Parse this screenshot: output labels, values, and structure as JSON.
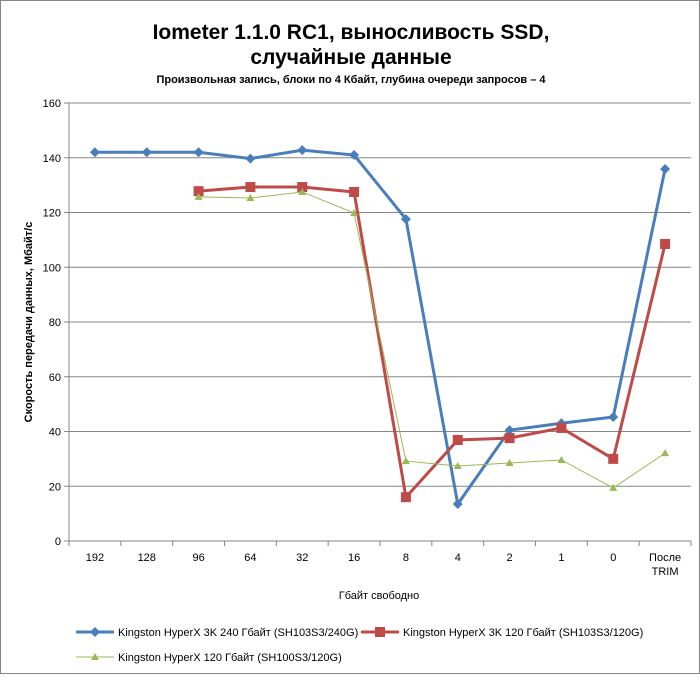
{
  "chart_data": {
    "type": "line",
    "title_line1": "Iometer 1.1.0 RC1, выносливость SSD,",
    "title_line2": "случайные данные",
    "subtitle": "Произвольная  запись, блоки по 4 Кбайт, глубина очереди запросов – 4",
    "xlabel": "Гбайт свободно",
    "ylabel": "Скорость  передачи данных, Мбайт/с",
    "ylim": [
      0,
      160
    ],
    "yticks": [
      0,
      20,
      40,
      60,
      80,
      100,
      120,
      140,
      160
    ],
    "grid": true,
    "legend_position": "bottom",
    "categories": [
      "192",
      "128",
      "96",
      "64",
      "32",
      "16",
      "8",
      "4",
      "2",
      "1",
      "0",
      "После TRIM"
    ],
    "series": [
      {
        "name": "Kingston HyperX  3K 240 Гбайт (SH103S3/240G)",
        "color": "#4a7ebb",
        "marker": "diamond",
        "values": [
          142,
          142,
          142,
          139.7,
          142.8,
          141,
          117.6,
          13.5,
          40.5,
          43,
          45.3,
          135.9
        ]
      },
      {
        "name": "Kingston HyperX  3K 120 Гбайт (SH103S3/120G)",
        "color": "#be4b48",
        "marker": "square",
        "values": [
          null,
          null,
          127.8,
          129.3,
          129.3,
          127.5,
          16,
          36.9,
          37.6,
          41.3,
          30,
          108.5
        ]
      },
      {
        "name": "Kingston HyperX  120 Гбайт (SH100S3/120G)",
        "color": "#98b954",
        "marker": "triangle",
        "values": [
          null,
          null,
          125.7,
          125.3,
          127.5,
          119.8,
          29.2,
          27.4,
          28.5,
          29.6,
          19.4,
          32.1
        ]
      }
    ]
  }
}
